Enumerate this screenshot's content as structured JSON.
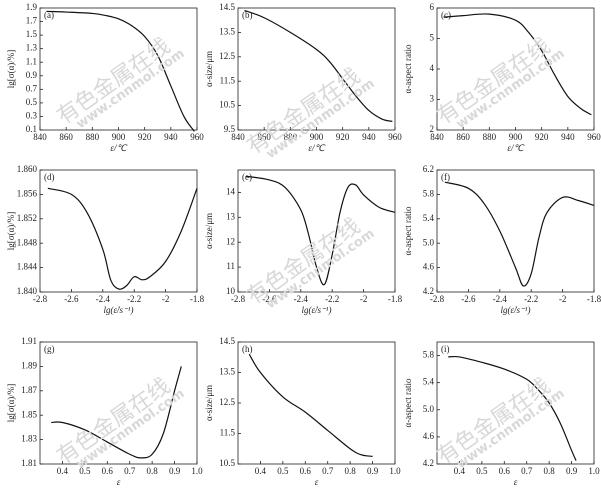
{
  "watermark": [
    "有色金属在线",
    "www.cnnmol.com"
  ],
  "chart_data": [
    {
      "type": "line",
      "panel": "(a)",
      "x_label": "ε/℃",
      "y_label": "lg[σ(α)/%]",
      "xlim": [
        840,
        960
      ],
      "xticks": [
        840,
        860,
        880,
        900,
        920,
        940,
        960
      ],
      "ylim": [
        0.1,
        1.9
      ],
      "yticks": [
        0.1,
        0.3,
        0.5,
        0.7,
        0.9,
        1.1,
        1.3,
        1.5,
        1.7,
        1.9
      ],
      "x": [
        845,
        860,
        880,
        890,
        900,
        910,
        920,
        930,
        940,
        950,
        958
      ],
      "values": [
        1.85,
        1.84,
        1.82,
        1.79,
        1.74,
        1.64,
        1.48,
        1.2,
        0.75,
        0.3,
        0.08
      ]
    },
    {
      "type": "line",
      "panel": "(b)",
      "x_label": "ε/℃",
      "y_label": "α-size/μm",
      "xlim": [
        840,
        960
      ],
      "xticks": [
        840,
        860,
        880,
        900,
        920,
        940,
        960
      ],
      "ylim": [
        9.5,
        14.5
      ],
      "yticks": [
        9.5,
        10.5,
        11.5,
        12.5,
        13.5,
        14.5
      ],
      "x": [
        845,
        860,
        880,
        900,
        910,
        920,
        930,
        940,
        950,
        958
      ],
      "values": [
        14.4,
        14.1,
        13.5,
        12.8,
        12.3,
        11.6,
        10.9,
        10.3,
        9.95,
        9.85
      ]
    },
    {
      "type": "line",
      "panel": "(c)",
      "x_label": "ε/℃",
      "y_label": "α-aspect ratio",
      "xlim": [
        840,
        960
      ],
      "xticks": [
        840,
        860,
        880,
        900,
        920,
        940,
        960
      ],
      "ylim": [
        2,
        6
      ],
      "yticks": [
        2,
        3,
        4,
        5,
        6
      ],
      "x": [
        845,
        860,
        880,
        900,
        910,
        920,
        930,
        940,
        950,
        958
      ],
      "values": [
        5.7,
        5.75,
        5.8,
        5.6,
        5.2,
        4.6,
        3.8,
        3.1,
        2.7,
        2.5
      ]
    },
    {
      "type": "line",
      "panel": "(d)",
      "x_label": "lg(ε̇/s⁻¹)",
      "y_label": "lg[σ(α)/%]",
      "xlim": [
        -2.8,
        -1.8
      ],
      "xticks": [
        -2.8,
        -2.6,
        -2.4,
        -2.2,
        -2.0,
        -1.8
      ],
      "ylim": [
        1.84,
        1.86
      ],
      "yticks": [
        {
          "value": 1.84,
          "label": "1.840"
        },
        {
          "value": 1.844,
          "label": "1.844"
        },
        {
          "value": 1.848,
          "label": "1.848"
        },
        {
          "value": 1.852,
          "label": "1.852"
        },
        {
          "value": 1.856,
          "label": "1.856"
        },
        {
          "value": 1.86,
          "label": "1.860"
        }
      ],
      "x": [
        -2.75,
        -2.6,
        -2.5,
        -2.4,
        -2.35,
        -2.3,
        -2.25,
        -2.2,
        -2.15,
        -2.1,
        -2.0,
        -1.9,
        -1.8
      ],
      "values": [
        1.857,
        1.856,
        1.853,
        1.847,
        1.842,
        1.8405,
        1.841,
        1.8425,
        1.842,
        1.8425,
        1.845,
        1.85,
        1.857
      ]
    },
    {
      "type": "line",
      "panel": "(e)",
      "x_label": "lg(ε̇/s⁻¹)",
      "y_label": "α-size/μm",
      "xlim": [
        -2.8,
        -1.8
      ],
      "xticks": [
        -2.8,
        -2.6,
        -2.4,
        -2.2,
        -2.0,
        -1.8
      ],
      "ylim": [
        10,
        14.9
      ],
      "yticks": [
        10,
        11,
        12,
        13,
        14
      ],
      "x": [
        -2.75,
        -2.6,
        -2.5,
        -2.4,
        -2.35,
        -2.3,
        -2.25,
        -2.2,
        -2.15,
        -2.1,
        -2.05,
        -2.0,
        -1.9,
        -1.8
      ],
      "values": [
        14.65,
        14.5,
        14.2,
        13.3,
        12.3,
        11.0,
        10.3,
        11.5,
        13.2,
        14.2,
        14.3,
        13.9,
        13.4,
        13.2
      ]
    },
    {
      "type": "line",
      "panel": "(f)",
      "x_label": "lg(ε̇/s⁻¹)",
      "y_label": "α-aspect ratio",
      "xlim": [
        -2.8,
        -1.8
      ],
      "xticks": [
        -2.8,
        -2.6,
        -2.4,
        -2.2,
        -2.0,
        -1.8
      ],
      "ylim": [
        4.2,
        6.2
      ],
      "yticks": [
        4.2,
        4.6,
        {
          "value": 5,
          "label": "5.0"
        },
        5.4,
        5.8,
        6.2
      ],
      "x": [
        -2.75,
        -2.6,
        -2.5,
        -2.4,
        -2.3,
        -2.25,
        -2.2,
        -2.15,
        -2.1,
        -2.0,
        -1.9,
        -1.8
      ],
      "values": [
        6.0,
        5.9,
        5.65,
        5.2,
        4.6,
        4.3,
        4.5,
        5.1,
        5.5,
        5.75,
        5.7,
        5.62
      ]
    },
    {
      "type": "line",
      "panel": "(g)",
      "x_label": "ε",
      "y_label": "lg[σ(α)/%]",
      "xlim": [
        0.3,
        1.0
      ],
      "xticks": [
        0.4,
        0.5,
        0.6,
        0.7,
        0.8,
        0.9,
        {
          "value": 1,
          "label": "1.0"
        }
      ],
      "ylim": [
        1.81,
        1.91
      ],
      "yticks": [
        1.81,
        1.83,
        1.85,
        1.87,
        1.89,
        1.91
      ],
      "x": [
        0.35,
        0.4,
        0.5,
        0.6,
        0.7,
        0.75,
        0.8,
        0.85,
        0.9,
        0.93
      ],
      "values": [
        1.844,
        1.844,
        1.838,
        1.828,
        1.818,
        1.815,
        1.818,
        1.835,
        1.87,
        1.89
      ]
    },
    {
      "type": "line",
      "panel": "(h)",
      "x_label": "ε",
      "y_label": "α-size/μm",
      "xlim": [
        0.3,
        1.0
      ],
      "xticks": [
        0.4,
        0.5,
        0.6,
        0.7,
        0.8,
        0.9,
        {
          "value": 1,
          "label": "1.0"
        }
      ],
      "ylim": [
        10.5,
        14.5
      ],
      "yticks": [
        10.5,
        11.5,
        12.5,
        13.5,
        14.5
      ],
      "x": [
        0.35,
        0.4,
        0.5,
        0.6,
        0.7,
        0.8,
        0.85,
        0.9
      ],
      "values": [
        14.1,
        13.5,
        12.7,
        12.2,
        11.6,
        11.0,
        10.8,
        10.75
      ]
    },
    {
      "type": "line",
      "panel": "(i)",
      "x_label": "ε",
      "y_label": "α-aspect ratio",
      "xlim": [
        0.3,
        1.0
      ],
      "xticks": [
        0.4,
        0.5,
        0.6,
        0.7,
        0.8,
        0.9,
        {
          "value": 1,
          "label": "1.0"
        }
      ],
      "ylim": [
        4.2,
        6.0
      ],
      "yticks": [
        4.2,
        4.6,
        {
          "value": 5,
          "label": "5.0"
        },
        5.4,
        5.8
      ],
      "x": [
        0.35,
        0.4,
        0.5,
        0.6,
        0.7,
        0.75,
        0.8,
        0.85,
        0.9,
        0.92
      ],
      "values": [
        5.78,
        5.78,
        5.7,
        5.6,
        5.45,
        5.3,
        5.1,
        4.8,
        4.4,
        4.25
      ]
    }
  ]
}
